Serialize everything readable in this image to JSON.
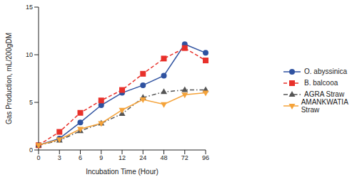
{
  "chart_data": {
    "type": "line",
    "x_label": "Incubation Time (Hour)",
    "y_label": "Gas Production, mL/200gDM",
    "categories": [
      "0",
      "3",
      "6",
      "9",
      "12",
      "24",
      "48",
      "72",
      "96"
    ],
    "ylim": [
      0,
      15
    ],
    "yticks": [
      0,
      5,
      10,
      15
    ],
    "grid": false,
    "legend": "right",
    "series": [
      {
        "name": "O. abyssinica",
        "color": "#2f52a0",
        "marker": "circle",
        "line_style": "solid",
        "values": [
          0.5,
          1.2,
          2.9,
          4.7,
          6.0,
          6.8,
          7.8,
          11.1,
          10.2
        ]
      },
      {
        "name": "B. balcooa",
        "color": "#e8302a",
        "marker": "square",
        "line_style": "dashed",
        "values": [
          0.5,
          1.9,
          3.9,
          5.2,
          6.3,
          8.0,
          9.6,
          10.7,
          9.4
        ]
      },
      {
        "name": "AGRA Straw",
        "color": "#555555",
        "marker": "triangle",
        "line_style": "dashdot",
        "values": [
          0.5,
          1.0,
          2.0,
          2.8,
          3.8,
          5.5,
          6.1,
          6.3,
          6.3
        ]
      },
      {
        "name": "AMANKWATIA Straw",
        "color": "#f5a33a",
        "marker": "triangle-down",
        "line_style": "solid",
        "values": [
          0.5,
          1.1,
          2.2,
          2.8,
          4.2,
          5.3,
          4.8,
          5.8,
          6.0
        ]
      }
    ]
  }
}
